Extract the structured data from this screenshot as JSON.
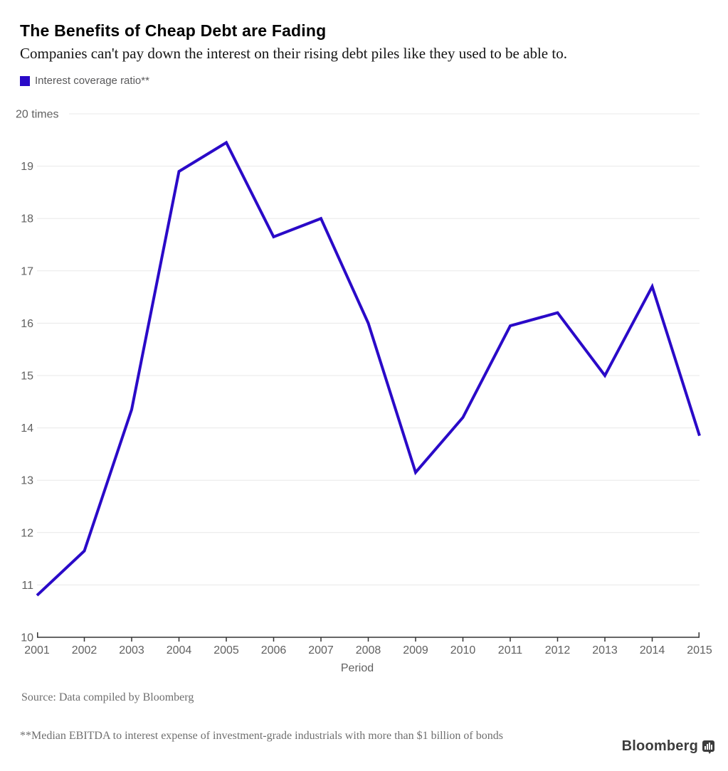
{
  "header": {
    "title": "The Benefits of Cheap Debt are Fading",
    "subtitle": "Companies can't pay down the interest on their rising debt piles like they used to be able to."
  },
  "legend": {
    "label": "Interest coverage ratio**",
    "color": "#2a0ac8"
  },
  "chart_data": {
    "type": "line",
    "x": [
      2001,
      2002,
      2003,
      2004,
      2005,
      2006,
      2007,
      2008,
      2009,
      2010,
      2011,
      2012,
      2013,
      2014,
      2015
    ],
    "series": [
      {
        "name": "Interest coverage ratio**",
        "color": "#2a0ac8",
        "values": [
          10.8,
          11.65,
          14.35,
          18.9,
          19.45,
          17.65,
          18.0,
          16.0,
          13.15,
          14.2,
          15.95,
          16.2,
          15.0,
          16.7,
          13.85
        ]
      }
    ],
    "ylim": [
      10,
      20
    ],
    "ytick_step": 1,
    "y_top_label": "20 times",
    "xlabel": "Period",
    "grid": true,
    "legend_position": "top-left",
    "colors": {
      "gridline": "#e8e8e8",
      "axis": "#333333",
      "tick_label": "#616161"
    }
  },
  "footer": {
    "source": "Source: Data compiled by Bloomberg",
    "footnote": "**Median EBITDA to interest expense of investment-grade industrials with more than $1 billion of bonds",
    "brand": "Bloomberg"
  }
}
